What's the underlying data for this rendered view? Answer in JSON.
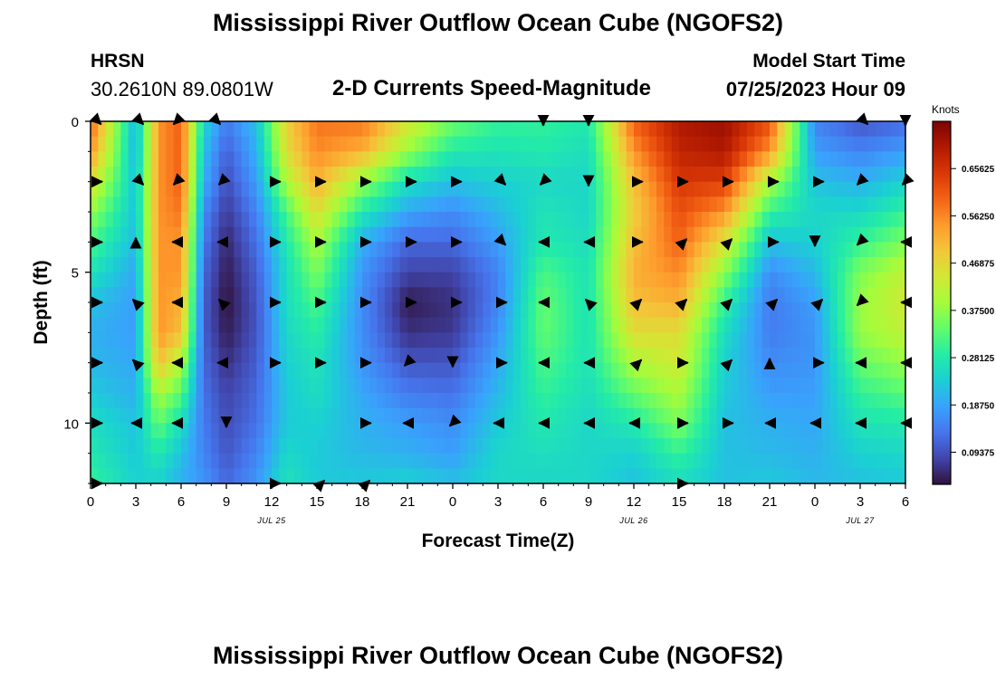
{
  "header": {
    "title": "Mississippi River Outflow Ocean Cube (NGOFS2)",
    "station": "HRSN",
    "coords": "30.2610N  89.0801W",
    "subtitle": "2-D Currents Speed-Magnitude",
    "model_start_label": "Model Start Time",
    "model_start_value": "07/25/2023 Hour 09"
  },
  "footer_title": "Mississippi River Outflow Ocean Cube (NGOFS2)",
  "colors": {
    "scale": [
      "#30123b",
      "#4145ab",
      "#4675ed",
      "#39a2fc",
      "#1bcfd4",
      "#24eca6",
      "#61fc6c",
      "#a4fc3b",
      "#d1e834",
      "#f3c63a",
      "#fe9b2d",
      "#f36315",
      "#d93806",
      "#b11901",
      "#7a0403"
    ],
    "arrow": "#000000"
  },
  "chart_data": {
    "type": "heatmap",
    "xlabel": "Forecast Time(Z)",
    "ylabel": "Depth (ft)",
    "x_ticks": [
      "0",
      "3",
      "6",
      "9",
      "12",
      "15",
      "18",
      "21",
      "0",
      "3",
      "6",
      "9",
      "12",
      "15",
      "18",
      "21",
      "0",
      "3",
      "6"
    ],
    "date_labels": [
      {
        "text": "JUL 25",
        "hour": 12
      },
      {
        "text": "JUL 26",
        "hour": 36
      },
      {
        "text": "JUL 27",
        "hour": 51
      }
    ],
    "xlim": [
      0,
      54
    ],
    "y_ticks": [
      0,
      5,
      10
    ],
    "ylim": [
      0,
      12
    ],
    "colorbar": {
      "title": "Knots",
      "ticks": [
        "0.65625",
        "0.56250",
        "0.46875",
        "0.37500",
        "0.28125",
        "0.18750",
        "0.09375"
      ],
      "range": [
        0.03,
        0.75
      ]
    },
    "time_profile": [
      {
        "t": 0,
        "s": [
          0.6,
          0.55,
          0.46,
          0.38,
          0.32,
          0.27,
          0.22,
          0.2,
          0.21,
          0.23,
          0.26,
          0.28,
          0.3
        ]
      },
      {
        "t": 3,
        "s": [
          0.2,
          0.2,
          0.22,
          0.22,
          0.21,
          0.19,
          0.18,
          0.18,
          0.19,
          0.2,
          0.22,
          0.23,
          0.24
        ]
      },
      {
        "t": 4.5,
        "s": [
          0.55,
          0.55,
          0.55,
          0.55,
          0.55,
          0.55,
          0.55,
          0.55,
          0.5,
          0.4,
          0.34,
          0.28,
          0.24
        ]
      },
      {
        "t": 6,
        "s": [
          0.6,
          0.6,
          0.6,
          0.58,
          0.55,
          0.55,
          0.52,
          0.5,
          0.4,
          0.33,
          0.26,
          0.22,
          0.2
        ]
      },
      {
        "t": 7.5,
        "s": [
          0.25,
          0.22,
          0.2,
          0.16,
          0.14,
          0.12,
          0.11,
          0.11,
          0.12,
          0.13,
          0.14,
          0.15,
          0.17
        ]
      },
      {
        "t": 9,
        "s": [
          0.14,
          0.11,
          0.09,
          0.07,
          0.05,
          0.04,
          0.03,
          0.04,
          0.06,
          0.08,
          0.09,
          0.1,
          0.12
        ]
      },
      {
        "t": 11,
        "s": [
          0.22,
          0.2,
          0.18,
          0.15,
          0.13,
          0.11,
          0.1,
          0.1,
          0.11,
          0.12,
          0.13,
          0.15,
          0.17
        ]
      },
      {
        "t": 13,
        "s": [
          0.48,
          0.46,
          0.4,
          0.32,
          0.28,
          0.26,
          0.26,
          0.25,
          0.24,
          0.23,
          0.23,
          0.25,
          0.27
        ]
      },
      {
        "t": 15,
        "s": [
          0.58,
          0.56,
          0.52,
          0.46,
          0.4,
          0.36,
          0.32,
          0.29,
          0.27,
          0.26,
          0.24,
          0.23,
          0.23
        ]
      },
      {
        "t": 18,
        "s": [
          0.58,
          0.52,
          0.38,
          0.28,
          0.2,
          0.17,
          0.16,
          0.16,
          0.17,
          0.19,
          0.2,
          0.21,
          0.23
        ]
      },
      {
        "t": 21,
        "s": [
          0.45,
          0.38,
          0.26,
          0.19,
          0.12,
          0.08,
          0.04,
          0.06,
          0.1,
          0.14,
          0.18,
          0.2,
          0.24
        ]
      },
      {
        "t": 24,
        "s": [
          0.35,
          0.28,
          0.22,
          0.16,
          0.12,
          0.08,
          0.06,
          0.07,
          0.1,
          0.13,
          0.16,
          0.18,
          0.22
        ]
      },
      {
        "t": 27,
        "s": [
          0.3,
          0.27,
          0.24,
          0.21,
          0.18,
          0.15,
          0.15,
          0.17,
          0.19,
          0.21,
          0.23,
          0.25,
          0.25
        ]
      },
      {
        "t": 30,
        "s": [
          0.3,
          0.28,
          0.25,
          0.27,
          0.28,
          0.32,
          0.34,
          0.34,
          0.32,
          0.3,
          0.28,
          0.26,
          0.25
        ]
      },
      {
        "t": 33,
        "s": [
          0.28,
          0.26,
          0.25,
          0.25,
          0.26,
          0.27,
          0.27,
          0.27,
          0.27,
          0.26,
          0.25,
          0.25,
          0.25
        ]
      },
      {
        "t": 36,
        "s": [
          0.6,
          0.55,
          0.5,
          0.48,
          0.5,
          0.52,
          0.5,
          0.46,
          0.4,
          0.34,
          0.28,
          0.24,
          0.22
        ]
      },
      {
        "t": 39,
        "s": [
          0.7,
          0.68,
          0.65,
          0.62,
          0.6,
          0.56,
          0.52,
          0.46,
          0.44,
          0.4,
          0.36,
          0.3,
          0.26
        ]
      },
      {
        "t": 42,
        "s": [
          0.72,
          0.7,
          0.64,
          0.55,
          0.45,
          0.37,
          0.3,
          0.26,
          0.24,
          0.23,
          0.22,
          0.22,
          0.22
        ]
      },
      {
        "t": 45,
        "s": [
          0.62,
          0.55,
          0.4,
          0.3,
          0.22,
          0.16,
          0.14,
          0.14,
          0.16,
          0.18,
          0.2,
          0.21,
          0.23
        ]
      },
      {
        "t": 48,
        "s": [
          0.15,
          0.18,
          0.22,
          0.25,
          0.24,
          0.21,
          0.18,
          0.17,
          0.17,
          0.18,
          0.19,
          0.2,
          0.21
        ]
      },
      {
        "t": 51,
        "s": [
          0.1,
          0.15,
          0.2,
          0.25,
          0.3,
          0.36,
          0.38,
          0.38,
          0.34,
          0.3,
          0.27,
          0.24,
          0.22
        ]
      },
      {
        "t": 54,
        "s": [
          0.12,
          0.18,
          0.24,
          0.3,
          0.36,
          0.42,
          0.44,
          0.42,
          0.38,
          0.33,
          0.28,
          0.25,
          0.23
        ]
      }
    ],
    "arrows": [
      {
        "t": 0.5,
        "d": 0,
        "dir": "SE"
      },
      {
        "t": 3.3,
        "d": 0,
        "dir": "SE"
      },
      {
        "t": 5.7,
        "d": 0,
        "dir": "SW"
      },
      {
        "t": 8.4,
        "d": 0,
        "dir": "SE"
      },
      {
        "t": 30,
        "d": 0,
        "dir": "S"
      },
      {
        "t": 33,
        "d": 0,
        "dir": "S"
      },
      {
        "t": 51.3,
        "d": 0,
        "dir": "SE"
      },
      {
        "t": 54,
        "d": 0,
        "dir": "S"
      },
      {
        "t": 0.5,
        "d": 2,
        "dir": "E"
      },
      {
        "t": 3.3,
        "d": 2,
        "dir": "SE"
      },
      {
        "t": 5.7,
        "d": 2,
        "dir": "SW"
      },
      {
        "t": 8.7,
        "d": 2,
        "dir": "SW"
      },
      {
        "t": 12.3,
        "d": 2,
        "dir": "E"
      },
      {
        "t": 15.3,
        "d": 2,
        "dir": "E"
      },
      {
        "t": 18.3,
        "d": 2,
        "dir": "E"
      },
      {
        "t": 21.3,
        "d": 2,
        "dir": "E"
      },
      {
        "t": 24.3,
        "d": 2,
        "dir": "E"
      },
      {
        "t": 27.3,
        "d": 2,
        "dir": "SE"
      },
      {
        "t": 30,
        "d": 2,
        "dir": "SW"
      },
      {
        "t": 33,
        "d": 2,
        "dir": "S"
      },
      {
        "t": 36.3,
        "d": 2,
        "dir": "E"
      },
      {
        "t": 39.3,
        "d": 2,
        "dir": "E"
      },
      {
        "t": 42.3,
        "d": 2,
        "dir": "E"
      },
      {
        "t": 45.3,
        "d": 2,
        "dir": "E"
      },
      {
        "t": 48.3,
        "d": 2,
        "dir": "E"
      },
      {
        "t": 51,
        "d": 2,
        "dir": "SW"
      },
      {
        "t": 54,
        "d": 2,
        "dir": "SW"
      },
      {
        "t": 0.5,
        "d": 4,
        "dir": "E"
      },
      {
        "t": 3,
        "d": 4,
        "dir": "N"
      },
      {
        "t": 5.7,
        "d": 4,
        "dir": "W"
      },
      {
        "t": 8.7,
        "d": 4,
        "dir": "W"
      },
      {
        "t": 12.3,
        "d": 4,
        "dir": "E"
      },
      {
        "t": 15.3,
        "d": 4,
        "dir": "E"
      },
      {
        "t": 18.3,
        "d": 4,
        "dir": "E"
      },
      {
        "t": 21.3,
        "d": 4,
        "dir": "E"
      },
      {
        "t": 24.3,
        "d": 4,
        "dir": "E"
      },
      {
        "t": 27.3,
        "d": 4,
        "dir": "SE"
      },
      {
        "t": 30,
        "d": 4,
        "dir": "W"
      },
      {
        "t": 33,
        "d": 4,
        "dir": "W"
      },
      {
        "t": 36.3,
        "d": 4,
        "dir": "E"
      },
      {
        "t": 39.3,
        "d": 4,
        "dir": "NE"
      },
      {
        "t": 42.3,
        "d": 4,
        "dir": "NE"
      },
      {
        "t": 45.3,
        "d": 4,
        "dir": "E"
      },
      {
        "t": 48,
        "d": 4,
        "dir": "S"
      },
      {
        "t": 51,
        "d": 4,
        "dir": "SW"
      },
      {
        "t": 54,
        "d": 4,
        "dir": "W"
      },
      {
        "t": 0.5,
        "d": 6,
        "dir": "E"
      },
      {
        "t": 3,
        "d": 6,
        "dir": "NW"
      },
      {
        "t": 5.7,
        "d": 6,
        "dir": "W"
      },
      {
        "t": 8.7,
        "d": 6,
        "dir": "NW"
      },
      {
        "t": 12.3,
        "d": 6,
        "dir": "E"
      },
      {
        "t": 15.3,
        "d": 6,
        "dir": "E"
      },
      {
        "t": 18.3,
        "d": 6,
        "dir": "E"
      },
      {
        "t": 21.3,
        "d": 6,
        "dir": "E"
      },
      {
        "t": 24.3,
        "d": 6,
        "dir": "E"
      },
      {
        "t": 27.3,
        "d": 6,
        "dir": "E"
      },
      {
        "t": 30,
        "d": 6,
        "dir": "W"
      },
      {
        "t": 33,
        "d": 6,
        "dir": "NW"
      },
      {
        "t": 36.3,
        "d": 6,
        "dir": "NE"
      },
      {
        "t": 39.3,
        "d": 6,
        "dir": "NE"
      },
      {
        "t": 42.3,
        "d": 6,
        "dir": "NE"
      },
      {
        "t": 45.3,
        "d": 6,
        "dir": "NE"
      },
      {
        "t": 48.3,
        "d": 6,
        "dir": "NE"
      },
      {
        "t": 51,
        "d": 6,
        "dir": "SW"
      },
      {
        "t": 54,
        "d": 6,
        "dir": "W"
      },
      {
        "t": 0.5,
        "d": 8,
        "dir": "E"
      },
      {
        "t": 3,
        "d": 8,
        "dir": "NW"
      },
      {
        "t": 5.7,
        "d": 8,
        "dir": "W"
      },
      {
        "t": 8.7,
        "d": 8,
        "dir": "W"
      },
      {
        "t": 12.3,
        "d": 8,
        "dir": "E"
      },
      {
        "t": 15.3,
        "d": 8,
        "dir": "E"
      },
      {
        "t": 18.3,
        "d": 8,
        "dir": "E"
      },
      {
        "t": 21,
        "d": 8,
        "dir": "SW"
      },
      {
        "t": 24,
        "d": 8,
        "dir": "S"
      },
      {
        "t": 27.3,
        "d": 8,
        "dir": "E"
      },
      {
        "t": 30,
        "d": 8,
        "dir": "W"
      },
      {
        "t": 33,
        "d": 8,
        "dir": "W"
      },
      {
        "t": 36.3,
        "d": 8,
        "dir": "NE"
      },
      {
        "t": 39.3,
        "d": 8,
        "dir": "E"
      },
      {
        "t": 42.3,
        "d": 8,
        "dir": "NE"
      },
      {
        "t": 45,
        "d": 8,
        "dir": "N"
      },
      {
        "t": 48.3,
        "d": 8,
        "dir": "E"
      },
      {
        "t": 51,
        "d": 8,
        "dir": "W"
      },
      {
        "t": 54,
        "d": 8,
        "dir": "W"
      },
      {
        "t": 0.5,
        "d": 10,
        "dir": "E"
      },
      {
        "t": 3,
        "d": 10,
        "dir": "W"
      },
      {
        "t": 5.7,
        "d": 10,
        "dir": "W"
      },
      {
        "t": 9,
        "d": 10,
        "dir": "S"
      },
      {
        "t": 18.3,
        "d": 10,
        "dir": "E"
      },
      {
        "t": 21,
        "d": 10,
        "dir": "W"
      },
      {
        "t": 24,
        "d": 10,
        "dir": "SW"
      },
      {
        "t": 27,
        "d": 10,
        "dir": "W"
      },
      {
        "t": 30,
        "d": 10,
        "dir": "W"
      },
      {
        "t": 33,
        "d": 10,
        "dir": "W"
      },
      {
        "t": 36,
        "d": 10,
        "dir": "W"
      },
      {
        "t": 39.3,
        "d": 10,
        "dir": "E"
      },
      {
        "t": 42.3,
        "d": 10,
        "dir": "E"
      },
      {
        "t": 45,
        "d": 10,
        "dir": "W"
      },
      {
        "t": 48,
        "d": 10,
        "dir": "W"
      },
      {
        "t": 51,
        "d": 10,
        "dir": "W"
      },
      {
        "t": 54,
        "d": 10,
        "dir": "W"
      },
      {
        "t": 0.5,
        "d": 12,
        "dir": "E"
      },
      {
        "t": 12.3,
        "d": 12,
        "dir": "E"
      },
      {
        "t": 15.3,
        "d": 12,
        "dir": "NE"
      },
      {
        "t": 18.3,
        "d": 12,
        "dir": "NE"
      },
      {
        "t": 39.3,
        "d": 12,
        "dir": "E"
      }
    ]
  }
}
